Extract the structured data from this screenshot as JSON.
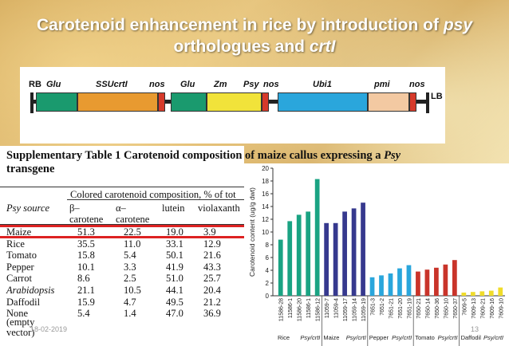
{
  "title": {
    "line1_a": "Carotenoid enhancement in rice by introduction of ",
    "line1_b": "psy",
    "line2_a": "orthologues and ",
    "line2_b": "crtI"
  },
  "construct": {
    "labels": [
      "RB",
      "Glu",
      "SSUcrtI",
      "nos",
      "Glu",
      "Zm",
      "Psy",
      "nos",
      "Ubi1",
      "pmi",
      "nos",
      "LB"
    ],
    "colors": {
      "green": "#1a9a6e",
      "orange": "#e89a30",
      "red": "#d63a2a",
      "yellow": "#f1e33a",
      "blue": "#2aa6dc",
      "peach": "#f3c9a2"
    }
  },
  "table": {
    "caption_a": "Supplementary Table 1 Carotenoid composition of maize callus expressing a ",
    "caption_b": "Psy",
    "caption_c": "transgene",
    "header_group": "Colored carotenoid composition, % of tot",
    "col_source": "Psy source",
    "col_beta": "β–carotene",
    "col_alpha": "α–carotene",
    "col_lutein": "lutein",
    "col_viola": "violaxanth",
    "rows": [
      {
        "source": "Maize",
        "italic": false,
        "v": [
          "51.3",
          "22.5",
          "19.0",
          "3.9"
        ]
      },
      {
        "source": "Rice",
        "italic": false,
        "v": [
          "35.5",
          "11.0",
          "33.1",
          "12.9"
        ]
      },
      {
        "source": "Tomato",
        "italic": false,
        "v": [
          "15.8",
          "5.4",
          "50.1",
          "21.6"
        ]
      },
      {
        "source": "Pepper",
        "italic": false,
        "v": [
          "10.1",
          "3.3",
          "41.9",
          "43.3"
        ]
      },
      {
        "source": "Carrot",
        "italic": false,
        "v": [
          "8.6",
          "2.5",
          "51.0",
          "25.7"
        ]
      },
      {
        "source": "Arabidopsis",
        "italic": true,
        "v": [
          "21.1",
          "10.5",
          "44.1",
          "20.4"
        ]
      },
      {
        "source": "Daffodil",
        "italic": false,
        "v": [
          "15.9",
          "4.7",
          "49.5",
          "21.2"
        ]
      },
      {
        "source": "None",
        "italic": false,
        "v": [
          "5.4",
          "1.4",
          "47.0",
          "36.9"
        ]
      }
    ],
    "none_extra1": "(empty",
    "none_extra2": "vector)"
  },
  "footer": {
    "date": "18-02-2019",
    "page": "13"
  },
  "chart_data": {
    "type": "bar",
    "ylabel": "Carotenoid content (ug/g dwt)",
    "ylim": [
      0,
      20
    ],
    "yticks": [
      0,
      2,
      4,
      6,
      8,
      10,
      12,
      14,
      16,
      18,
      20
    ],
    "categories": [
      "11586-28",
      "11586-1",
      "11586-20",
      "11586-1",
      "11586-12",
      "11059-7",
      "11059-4",
      "11059-17",
      "11059-14",
      "11059-19",
      "7651-3",
      "7651-2",
      "7651-21",
      "7651-20",
      "7651-19",
      "7650-21",
      "7650-14",
      "7650-36",
      "7650-10",
      "7650-37",
      "7609-5",
      "7609-13",
      "7609-21",
      "7609-16",
      "7609-10"
    ],
    "values": [
      8.8,
      11.7,
      12.7,
      13.2,
      18.3,
      11.4,
      11.4,
      13.2,
      13.7,
      14.6,
      2.9,
      3.2,
      3.5,
      4.3,
      4.8,
      3.8,
      4.1,
      4.4,
      4.9,
      5.6,
      0.5,
      0.6,
      0.7,
      0.8,
      1.3
    ],
    "bar_colors": [
      "#1aa383",
      "#1aa383",
      "#1aa383",
      "#1aa383",
      "#1aa383",
      "#36398e",
      "#36398e",
      "#36398e",
      "#36398e",
      "#36398e",
      "#2aa6dc",
      "#2aa6dc",
      "#2aa6dc",
      "#2aa6dc",
      "#2aa6dc",
      "#c9342a",
      "#c9342a",
      "#c9342a",
      "#c9342a",
      "#c9342a",
      "#f0dc2a",
      "#f0dc2a",
      "#f0dc2a",
      "#f0dc2a",
      "#f0dc2a"
    ],
    "groups": [
      {
        "a": "Rice",
        "b": "Psy/crtI"
      },
      {
        "a": "Maize",
        "b": "Psy/crtI"
      },
      {
        "a": "Pepper",
        "b": "Psy/crtI"
      },
      {
        "a": "Tomato",
        "b": "Psy/crtI"
      },
      {
        "a": "Daffodil",
        "b": "Psy/crtI"
      }
    ]
  }
}
